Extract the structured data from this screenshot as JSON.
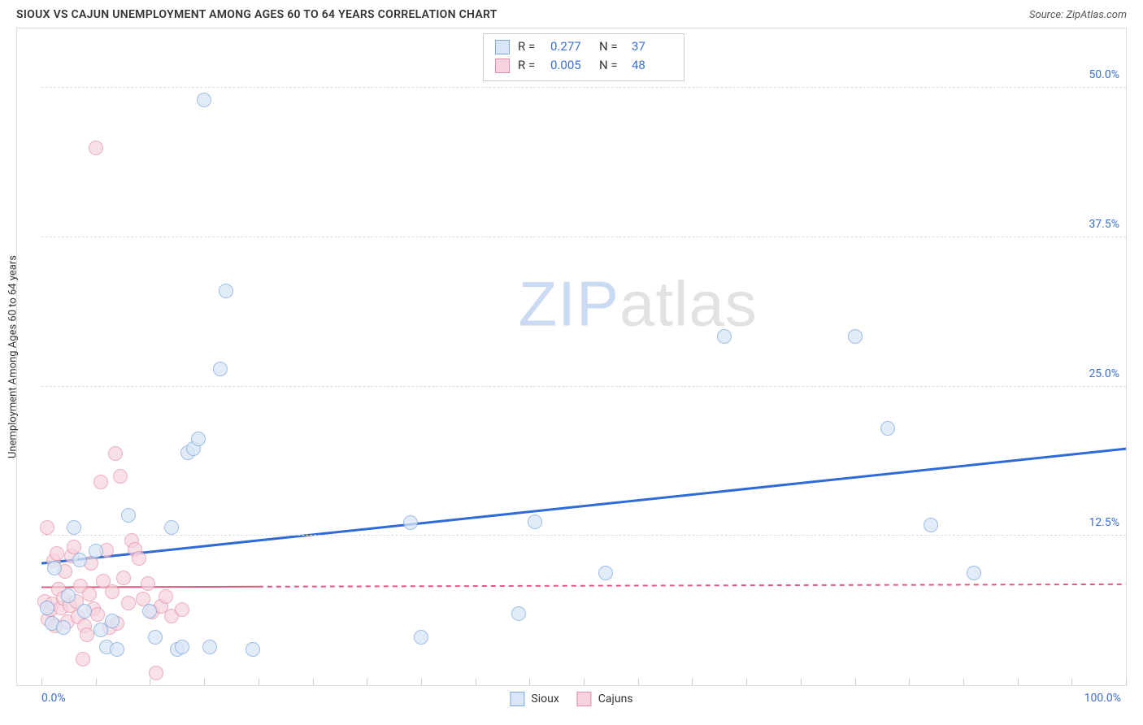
{
  "header": {
    "title": "SIOUX VS CAJUN UNEMPLOYMENT AMONG AGES 60 TO 64 YEARS CORRELATION CHART",
    "source_prefix": "Source: ",
    "source_name": "ZipAtlas.com"
  },
  "chart": {
    "type": "scatter",
    "ylabel": "Unemployment Among Ages 60 to 64 years",
    "xlim": [
      0,
      100
    ],
    "ylim": [
      0,
      55
    ],
    "x_ticks_minor": [
      0,
      5,
      10,
      15,
      20,
      25,
      30,
      35,
      40,
      45,
      50,
      55,
      60,
      65,
      70,
      75,
      80,
      85,
      90,
      95,
      100
    ],
    "x_tick_labels": [
      {
        "value": 0,
        "label": "0.0%",
        "align": "left"
      },
      {
        "value": 100,
        "label": "100.0%",
        "align": "right"
      }
    ],
    "y_grid": [
      12.5,
      25.0,
      37.5,
      50.0
    ],
    "y_tick_labels": [
      {
        "value": 12.5,
        "label": "12.5%"
      },
      {
        "value": 25.0,
        "label": "25.0%"
      },
      {
        "value": 37.5,
        "label": "37.5%"
      },
      {
        "value": 50.0,
        "label": "50.0%"
      }
    ],
    "background_color": "#ffffff",
    "grid_color": "#dcdcdc",
    "border_color": "#dddddd",
    "marker_radius": 9,
    "watermark": {
      "zip": "ZIP",
      "atlas": "atlas"
    },
    "series": {
      "sioux": {
        "label": "Sioux",
        "fill": "#d9e6f7",
        "stroke": "#7ea8dd",
        "fill_opacity": 0.75,
        "trend": {
          "color": "#2e6bd6",
          "width": 3,
          "y_at_x0": 10.2,
          "y_at_x100": 19.8,
          "solid_until_x": 100
        },
        "R_label": "R  =",
        "R": "0.277",
        "N_label": "N  =",
        "N": "37",
        "points": [
          [
            0.5,
            6.5
          ],
          [
            1,
            5.2
          ],
          [
            1.2,
            9.8
          ],
          [
            2,
            4.8
          ],
          [
            2.5,
            7.5
          ],
          [
            3,
            13.2
          ],
          [
            3.5,
            10.5
          ],
          [
            4,
            6.2
          ],
          [
            5,
            11.2
          ],
          [
            5.5,
            4.6
          ],
          [
            6,
            3.2
          ],
          [
            6.5,
            5.4
          ],
          [
            7,
            3.0
          ],
          [
            8,
            14.2
          ],
          [
            10,
            6.2
          ],
          [
            10.5,
            4.0
          ],
          [
            12,
            13.2
          ],
          [
            12.5,
            3.0
          ],
          [
            13,
            3.2
          ],
          [
            13.5,
            19.5
          ],
          [
            14,
            19.8
          ],
          [
            14.5,
            20.6
          ],
          [
            15,
            49.0
          ],
          [
            15.5,
            3.2
          ],
          [
            16.5,
            26.5
          ],
          [
            17,
            33.0
          ],
          [
            19.5,
            3.0
          ],
          [
            34,
            13.6
          ],
          [
            35,
            4.0
          ],
          [
            44,
            6.0
          ],
          [
            45.5,
            13.7
          ],
          [
            52,
            9.4
          ],
          [
            63,
            29.2
          ],
          [
            75,
            29.2
          ],
          [
            78,
            21.5
          ],
          [
            82,
            13.4
          ],
          [
            86,
            9.4
          ]
        ]
      },
      "cajuns": {
        "label": "Cajuns",
        "fill": "#f6d3dd",
        "stroke": "#e48da6",
        "fill_opacity": 0.7,
        "trend": {
          "color": "#e05a7e",
          "width": 2,
          "y_at_x0": 8.2,
          "y_at_x100": 8.45,
          "solid_until_x": 20
        },
        "R_label": "R  =",
        "R": "0.005",
        "N_label": "N  =",
        "N": "48",
        "points": [
          [
            0.3,
            7.0
          ],
          [
            0.5,
            13.2
          ],
          [
            0.6,
            5.5
          ],
          [
            0.8,
            6.3
          ],
          [
            1.0,
            6.8
          ],
          [
            1.1,
            10.4
          ],
          [
            1.3,
            5.0
          ],
          [
            1.4,
            11.0
          ],
          [
            1.6,
            8.0
          ],
          [
            1.8,
            6.5
          ],
          [
            2.0,
            7.3
          ],
          [
            2.2,
            9.5
          ],
          [
            2.4,
            5.3
          ],
          [
            2.6,
            6.7
          ],
          [
            2.8,
            10.8
          ],
          [
            3.0,
            11.6
          ],
          [
            3.2,
            7.0
          ],
          [
            3.4,
            5.7
          ],
          [
            3.6,
            8.3
          ],
          [
            3.8,
            2.2
          ],
          [
            4.0,
            5.0
          ],
          [
            4.2,
            4.2
          ],
          [
            4.4,
            7.6
          ],
          [
            4.6,
            10.2
          ],
          [
            4.8,
            6.4
          ],
          [
            5.0,
            45.0
          ],
          [
            5.2,
            5.9
          ],
          [
            5.5,
            17.0
          ],
          [
            5.7,
            8.7
          ],
          [
            6.0,
            11.3
          ],
          [
            6.3,
            4.8
          ],
          [
            6.5,
            7.8
          ],
          [
            6.8,
            19.4
          ],
          [
            7.0,
            5.2
          ],
          [
            7.3,
            17.5
          ],
          [
            7.6,
            9.0
          ],
          [
            8.0,
            6.9
          ],
          [
            8.3,
            12.1
          ],
          [
            8.6,
            11.4
          ],
          [
            9.0,
            10.6
          ],
          [
            9.4,
            7.2
          ],
          [
            9.8,
            8.5
          ],
          [
            10.2,
            6.1
          ],
          [
            10.6,
            1.0
          ],
          [
            11.0,
            6.6
          ],
          [
            11.5,
            7.4
          ],
          [
            12.0,
            5.8
          ],
          [
            13.0,
            6.3
          ]
        ]
      }
    }
  }
}
